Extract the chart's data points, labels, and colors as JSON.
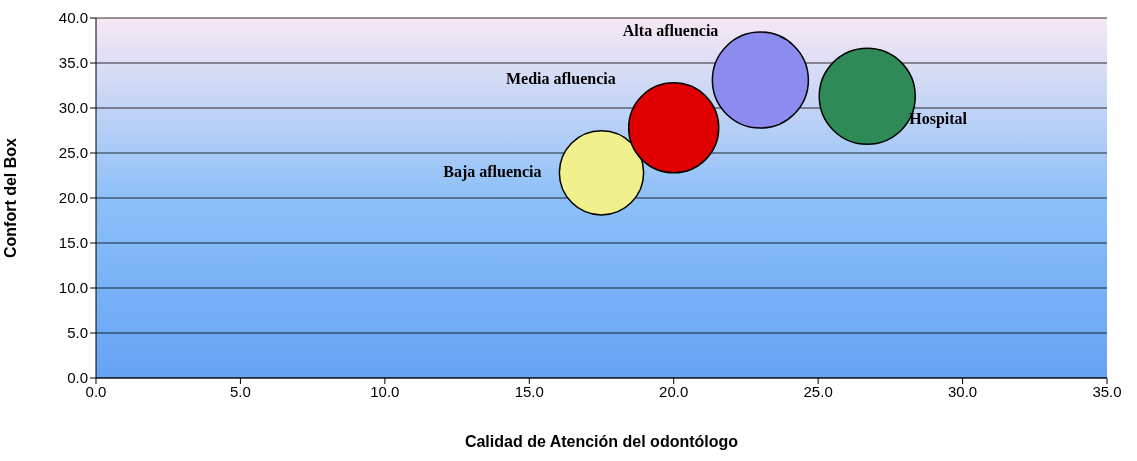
{
  "chart_data": {
    "type": "bubble",
    "xlabel": "Calidad de Atención del odontólogo",
    "ylabel": "Confort del Box",
    "xlim": [
      0,
      35
    ],
    "xticks": [
      {
        "value": 0,
        "label": "0.0"
      },
      {
        "value": 5,
        "label": "5.0"
      },
      {
        "value": 10,
        "label": "10.0"
      },
      {
        "value": 15,
        "label": "15.0"
      },
      {
        "value": 20,
        "label": "20.0"
      },
      {
        "value": 25,
        "label": "25.0"
      },
      {
        "value": 30,
        "label": "30.0"
      },
      {
        "value": 35,
        "label": "35.0"
      }
    ],
    "ylim": [
      0,
      40
    ],
    "yticks": [
      {
        "value": 0,
        "label": "0.0"
      },
      {
        "value": 5,
        "label": "5.0"
      },
      {
        "value": 10,
        "label": "10.0"
      },
      {
        "value": 15,
        "label": "15.0"
      },
      {
        "value": 20,
        "label": "20.0"
      },
      {
        "value": 25,
        "label": "25.0"
      },
      {
        "value": 30,
        "label": "30.0"
      },
      {
        "value": 35,
        "label": "35.0"
      },
      {
        "value": 40,
        "label": "40.0"
      }
    ],
    "grid": "y",
    "legend": false,
    "series": [
      {
        "name": "Baja afluencia",
        "color": "#f0f08c",
        "x": [
          17.5
        ],
        "values": [
          22.8
        ],
        "sizes": [
          0.77
        ]
      },
      {
        "name": "Media afluencia",
        "color": "#e00000",
        "x": [
          20.0
        ],
        "values": [
          27.8
        ],
        "sizes": [
          0.88
        ]
      },
      {
        "name": "Alta afluencia",
        "color": "#8c8cf0",
        "x": [
          23.0
        ],
        "values": [
          33.1
        ],
        "sizes": [
          1
        ]
      },
      {
        "name": "Hospital",
        "color": "#2e8b57",
        "x": [
          26.7
        ],
        "values": [
          31.3
        ],
        "sizes": [
          1
        ]
      }
    ]
  }
}
